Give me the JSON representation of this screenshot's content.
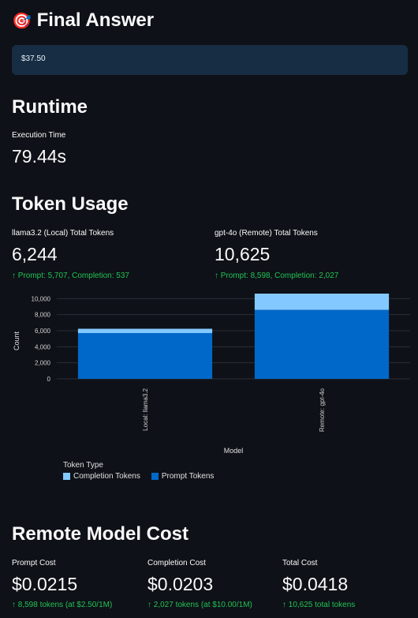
{
  "final_answer": {
    "icon": "🎯",
    "title": "Final Answer",
    "value": "$37.50"
  },
  "runtime": {
    "title": "Runtime",
    "label": "Execution Time",
    "value": "79.44s"
  },
  "token_usage": {
    "title": "Token Usage",
    "local": {
      "label": "llama3.2 (Local) Total Tokens",
      "value": "6,244",
      "delta": "Prompt: 5,707, Completion: 537"
    },
    "remote": {
      "label": "gpt-4o (Remote) Total Tokens",
      "value": "10,625",
      "delta": "Prompt: 8,598, Completion: 2,027"
    }
  },
  "chart_data": {
    "type": "bar",
    "stacked": true,
    "categories": [
      "Local: llama3.2",
      "Remote: gpt-4o"
    ],
    "series": [
      {
        "name": "Prompt Tokens",
        "values": [
          5707,
          8598
        ],
        "color": "#0068c9"
      },
      {
        "name": "Completion Tokens",
        "values": [
          537,
          2027
        ],
        "color": "#83c9ff"
      }
    ],
    "xlabel": "Model",
    "ylabel": "Count",
    "yticks": [
      "0",
      "2,000",
      "4,000",
      "6,000",
      "8,000",
      "10,000"
    ],
    "ylim": [
      0,
      10625
    ],
    "legend_title": "Token Type",
    "legend_items": [
      "Completion Tokens",
      "Prompt Tokens"
    ],
    "legend_position": "bottom-left",
    "grid": true
  },
  "remote_cost": {
    "title": "Remote Model Cost",
    "prompt": {
      "label": "Prompt Cost",
      "value": "$0.0215",
      "delta": "8,598 tokens (at $2.50/1M)"
    },
    "completion": {
      "label": "Completion Cost",
      "value": "$0.0203",
      "delta": "2,027 tokens (at $10.00/1M)"
    },
    "total": {
      "label": "Total Cost",
      "value": "$0.0418",
      "delta": "10,625 total tokens"
    }
  },
  "colors": {
    "background": "#0e1117",
    "answer_box": "#172d43",
    "delta_green": "#21c354",
    "prompt_blue": "#0068c9",
    "completion_blue": "#83c9ff"
  }
}
